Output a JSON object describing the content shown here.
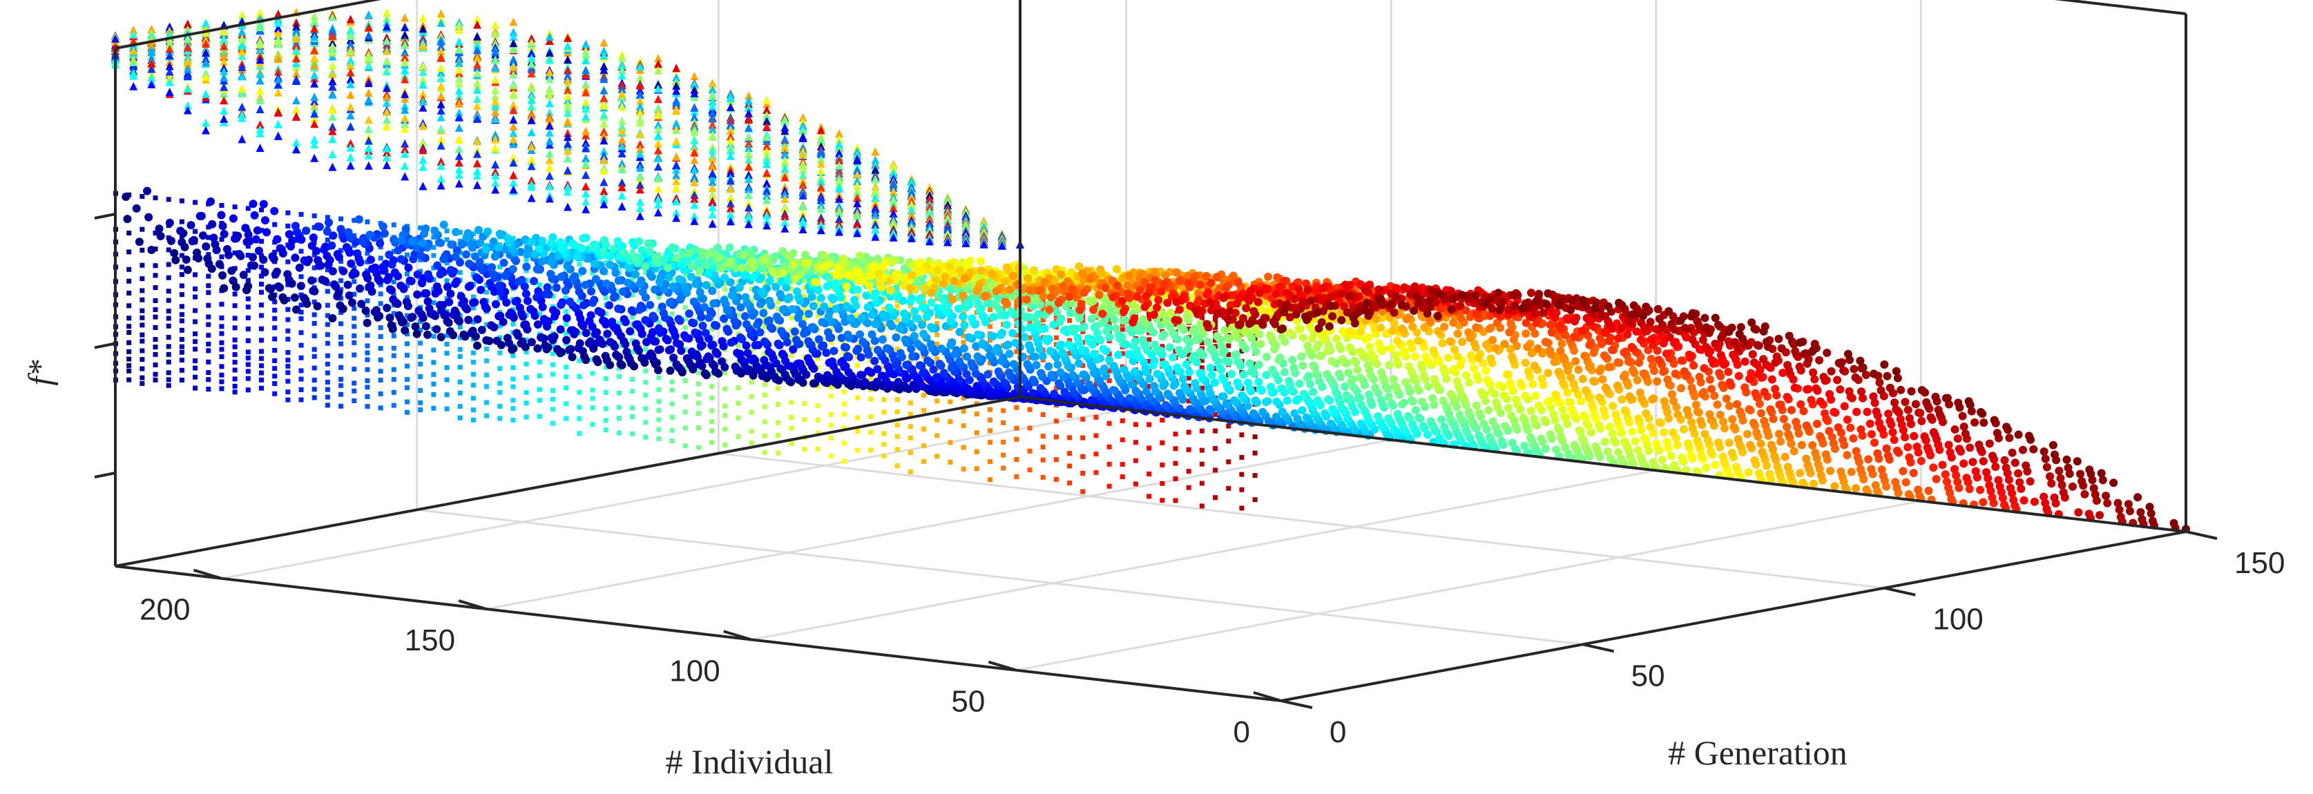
{
  "chart_data": {
    "type": "scatter",
    "view": "3d",
    "x_axis": {
      "label": "# Generation",
      "ticks": [
        "0",
        "50",
        "100",
        "150"
      ],
      "range": [
        0,
        150
      ]
    },
    "y_axis": {
      "label": "# Individual",
      "ticks": [
        "0",
        "50",
        "100",
        "150",
        "200"
      ],
      "range": [
        0,
        220
      ]
    },
    "z_axis": {
      "label": "f*",
      "ticks": []
    },
    "grid": true,
    "colormap": "jet",
    "color_encodes": "# Individual",
    "series": [
      {
        "marker": "dot",
        "shape": "fitness f* of each individual by generation, decreasing with generation"
      },
      {
        "marker": "dot",
        "projection": "f* vs # Individual (wall)"
      },
      {
        "marker": "triangle",
        "projection": "f* vs # Generation (wall)"
      }
    ]
  }
}
